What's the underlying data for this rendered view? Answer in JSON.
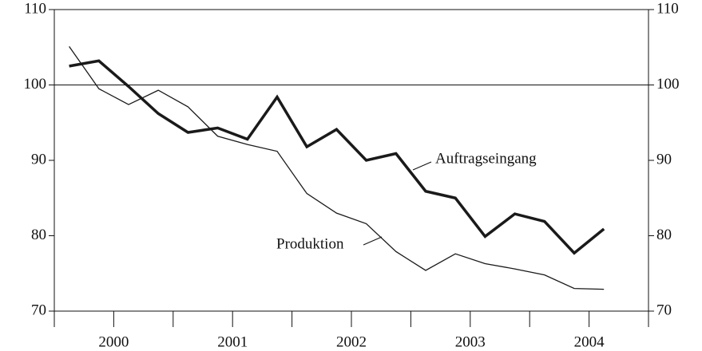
{
  "chart_data": {
    "type": "line",
    "x": [
      2000.125,
      2000.375,
      2000.625,
      2000.875,
      2001.125,
      2001.375,
      2001.625,
      2001.875,
      2002.125,
      2002.375,
      2002.625,
      2002.875,
      2003.125,
      2003.375,
      2003.625,
      2003.875,
      2004.125,
      2004.375,
      2004.625
    ],
    "series": [
      {
        "name": "Auftragseingang",
        "color": "#1a1a1a",
        "width": 3.5,
        "values": [
          102.5,
          103.2,
          99.8,
          96.2,
          93.7,
          94.3,
          92.8,
          98.4,
          91.8,
          94.1,
          90.0,
          90.9,
          85.9,
          85.0,
          79.9,
          82.9,
          81.9,
          77.7,
          80.9
        ]
      },
      {
        "name": "Produktion",
        "color": "#1a1a1a",
        "width": 1.3,
        "values": [
          105.1,
          99.5,
          97.4,
          99.3,
          97.1,
          93.2,
          92.1,
          91.2,
          85.6,
          83.0,
          81.6,
          77.9,
          75.4,
          77.6,
          76.3,
          75.6,
          74.8,
          73.0,
          72.9
        ]
      }
    ],
    "xlim": [
      2000,
      2005
    ],
    "xticks": [
      {
        "value": 2000.5,
        "label": "2000"
      },
      {
        "value": 2001.5,
        "label": "2001"
      },
      {
        "value": 2002.5,
        "label": "2002"
      },
      {
        "value": 2003.5,
        "label": "2003"
      },
      {
        "value": 2004.5,
        "label": "2004"
      }
    ],
    "ylim": [
      70,
      110
    ],
    "yticks": [
      70,
      80,
      90,
      100,
      110
    ],
    "hline": 100
  }
}
